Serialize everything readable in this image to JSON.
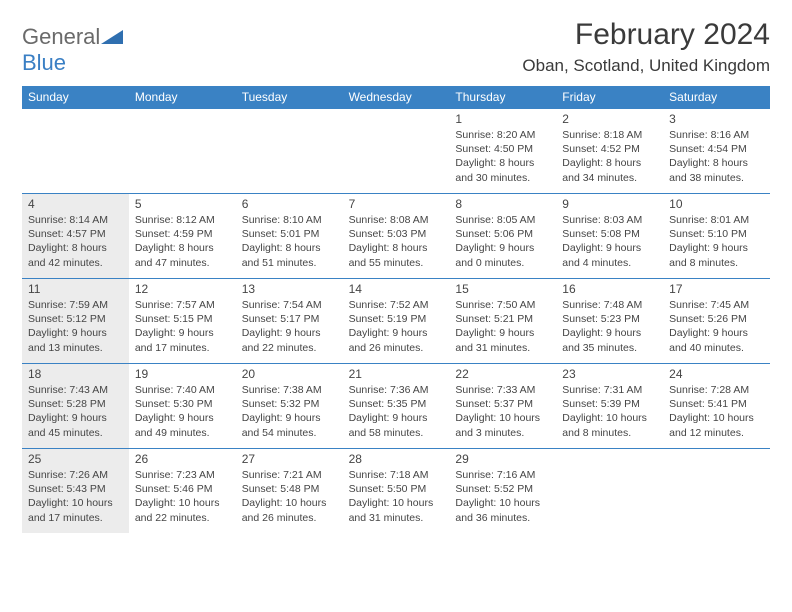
{
  "logo": {
    "general": "General",
    "blue": "Blue"
  },
  "title": "February 2024",
  "location": "Oban, Scotland, United Kingdom",
  "colors": {
    "header_bg": "#3a82c4",
    "header_text": "#ffffff",
    "row_divider": "#3a82c4",
    "shaded_bg": "#ececec",
    "text": "#454545",
    "logo_gray": "#6a6a6a",
    "logo_blue": "#3a7fc4"
  },
  "typography": {
    "title_fontsize": 30,
    "location_fontsize": 17,
    "dayheader_fontsize": 12,
    "daynum_fontsize": 12,
    "body_fontsize": 10.5
  },
  "day_names": [
    "Sunday",
    "Monday",
    "Tuesday",
    "Wednesday",
    "Thursday",
    "Friday",
    "Saturday"
  ],
  "weeks": [
    [
      null,
      null,
      null,
      null,
      {
        "n": "1",
        "sr": "Sunrise: 8:20 AM",
        "ss": "Sunset: 4:50 PM",
        "d1": "Daylight: 8 hours",
        "d2": "and 30 minutes."
      },
      {
        "n": "2",
        "sr": "Sunrise: 8:18 AM",
        "ss": "Sunset: 4:52 PM",
        "d1": "Daylight: 8 hours",
        "d2": "and 34 minutes."
      },
      {
        "n": "3",
        "sr": "Sunrise: 8:16 AM",
        "ss": "Sunset: 4:54 PM",
        "d1": "Daylight: 8 hours",
        "d2": "and 38 minutes."
      }
    ],
    [
      {
        "n": "4",
        "sr": "Sunrise: 8:14 AM",
        "ss": "Sunset: 4:57 PM",
        "d1": "Daylight: 8 hours",
        "d2": "and 42 minutes.",
        "shaded": true
      },
      {
        "n": "5",
        "sr": "Sunrise: 8:12 AM",
        "ss": "Sunset: 4:59 PM",
        "d1": "Daylight: 8 hours",
        "d2": "and 47 minutes."
      },
      {
        "n": "6",
        "sr": "Sunrise: 8:10 AM",
        "ss": "Sunset: 5:01 PM",
        "d1": "Daylight: 8 hours",
        "d2": "and 51 minutes."
      },
      {
        "n": "7",
        "sr": "Sunrise: 8:08 AM",
        "ss": "Sunset: 5:03 PM",
        "d1": "Daylight: 8 hours",
        "d2": "and 55 minutes."
      },
      {
        "n": "8",
        "sr": "Sunrise: 8:05 AM",
        "ss": "Sunset: 5:06 PM",
        "d1": "Daylight: 9 hours",
        "d2": "and 0 minutes."
      },
      {
        "n": "9",
        "sr": "Sunrise: 8:03 AM",
        "ss": "Sunset: 5:08 PM",
        "d1": "Daylight: 9 hours",
        "d2": "and 4 minutes."
      },
      {
        "n": "10",
        "sr": "Sunrise: 8:01 AM",
        "ss": "Sunset: 5:10 PM",
        "d1": "Daylight: 9 hours",
        "d2": "and 8 minutes."
      }
    ],
    [
      {
        "n": "11",
        "sr": "Sunrise: 7:59 AM",
        "ss": "Sunset: 5:12 PM",
        "d1": "Daylight: 9 hours",
        "d2": "and 13 minutes.",
        "shaded": true
      },
      {
        "n": "12",
        "sr": "Sunrise: 7:57 AM",
        "ss": "Sunset: 5:15 PM",
        "d1": "Daylight: 9 hours",
        "d2": "and 17 minutes."
      },
      {
        "n": "13",
        "sr": "Sunrise: 7:54 AM",
        "ss": "Sunset: 5:17 PM",
        "d1": "Daylight: 9 hours",
        "d2": "and 22 minutes."
      },
      {
        "n": "14",
        "sr": "Sunrise: 7:52 AM",
        "ss": "Sunset: 5:19 PM",
        "d1": "Daylight: 9 hours",
        "d2": "and 26 minutes."
      },
      {
        "n": "15",
        "sr": "Sunrise: 7:50 AM",
        "ss": "Sunset: 5:21 PM",
        "d1": "Daylight: 9 hours",
        "d2": "and 31 minutes."
      },
      {
        "n": "16",
        "sr": "Sunrise: 7:48 AM",
        "ss": "Sunset: 5:23 PM",
        "d1": "Daylight: 9 hours",
        "d2": "and 35 minutes."
      },
      {
        "n": "17",
        "sr": "Sunrise: 7:45 AM",
        "ss": "Sunset: 5:26 PM",
        "d1": "Daylight: 9 hours",
        "d2": "and 40 minutes."
      }
    ],
    [
      {
        "n": "18",
        "sr": "Sunrise: 7:43 AM",
        "ss": "Sunset: 5:28 PM",
        "d1": "Daylight: 9 hours",
        "d2": "and 45 minutes.",
        "shaded": true
      },
      {
        "n": "19",
        "sr": "Sunrise: 7:40 AM",
        "ss": "Sunset: 5:30 PM",
        "d1": "Daylight: 9 hours",
        "d2": "and 49 minutes."
      },
      {
        "n": "20",
        "sr": "Sunrise: 7:38 AM",
        "ss": "Sunset: 5:32 PM",
        "d1": "Daylight: 9 hours",
        "d2": "and 54 minutes."
      },
      {
        "n": "21",
        "sr": "Sunrise: 7:36 AM",
        "ss": "Sunset: 5:35 PM",
        "d1": "Daylight: 9 hours",
        "d2": "and 58 minutes."
      },
      {
        "n": "22",
        "sr": "Sunrise: 7:33 AM",
        "ss": "Sunset: 5:37 PM",
        "d1": "Daylight: 10 hours",
        "d2": "and 3 minutes."
      },
      {
        "n": "23",
        "sr": "Sunrise: 7:31 AM",
        "ss": "Sunset: 5:39 PM",
        "d1": "Daylight: 10 hours",
        "d2": "and 8 minutes."
      },
      {
        "n": "24",
        "sr": "Sunrise: 7:28 AM",
        "ss": "Sunset: 5:41 PM",
        "d1": "Daylight: 10 hours",
        "d2": "and 12 minutes."
      }
    ],
    [
      {
        "n": "25",
        "sr": "Sunrise: 7:26 AM",
        "ss": "Sunset: 5:43 PM",
        "d1": "Daylight: 10 hours",
        "d2": "and 17 minutes.",
        "shaded": true
      },
      {
        "n": "26",
        "sr": "Sunrise: 7:23 AM",
        "ss": "Sunset: 5:46 PM",
        "d1": "Daylight: 10 hours",
        "d2": "and 22 minutes."
      },
      {
        "n": "27",
        "sr": "Sunrise: 7:21 AM",
        "ss": "Sunset: 5:48 PM",
        "d1": "Daylight: 10 hours",
        "d2": "and 26 minutes."
      },
      {
        "n": "28",
        "sr": "Sunrise: 7:18 AM",
        "ss": "Sunset: 5:50 PM",
        "d1": "Daylight: 10 hours",
        "d2": "and 31 minutes."
      },
      {
        "n": "29",
        "sr": "Sunrise: 7:16 AM",
        "ss": "Sunset: 5:52 PM",
        "d1": "Daylight: 10 hours",
        "d2": "and 36 minutes."
      },
      null,
      null
    ]
  ]
}
